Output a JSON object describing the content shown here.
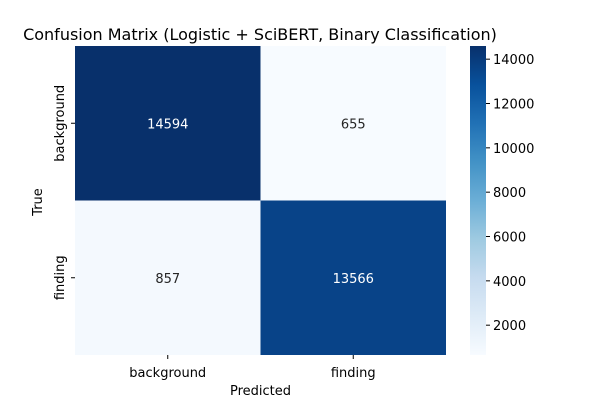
{
  "chart_data": {
    "type": "heatmap",
    "title": "Confusion Matrix (Logistic + SciBERT, Binary Classification)",
    "xlabel": "Predicted",
    "ylabel": "True",
    "x_categories": [
      "background",
      "finding"
    ],
    "y_categories": [
      "background",
      "finding"
    ],
    "matrix": [
      [
        14594,
        655
      ],
      [
        857,
        13566
      ]
    ],
    "colormap": "Blues",
    "vmin": 655,
    "vmax": 14594,
    "colorbar_ticks": [
      2000,
      4000,
      6000,
      8000,
      10000,
      12000,
      14000
    ],
    "cell_annotations": true,
    "grid": false
  }
}
